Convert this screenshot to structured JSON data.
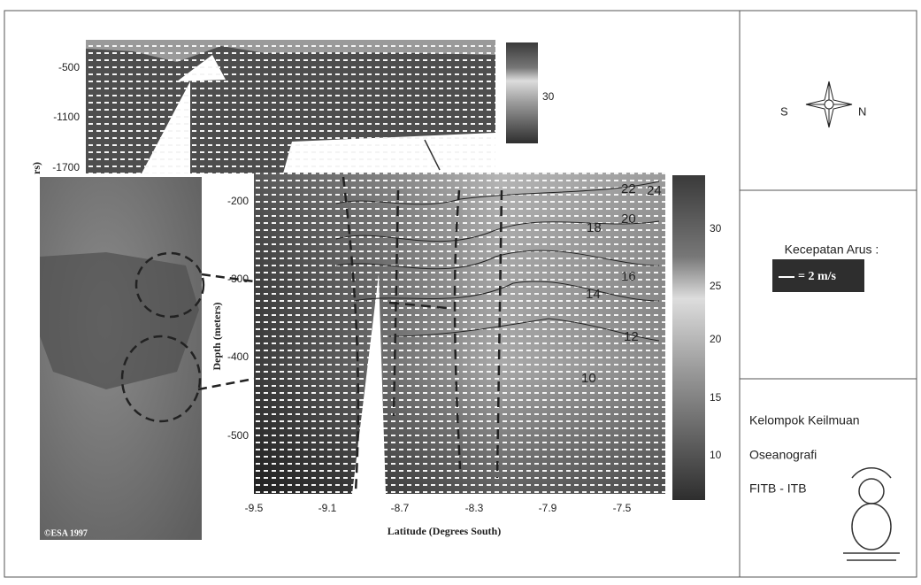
{
  "top_section": {
    "y_axis_label": "rs)",
    "y_ticks": [
      "-500",
      "-1100",
      "-1700"
    ],
    "colorbar_ticks": [
      "30"
    ]
  },
  "satellite_image": {
    "caption": "©ESA 1997"
  },
  "main_section": {
    "y_axis_label": "Depth (meters)",
    "y_ticks": [
      "-200",
      "-300",
      "-400",
      "-500"
    ],
    "x_axis_label": "Latitude (Degrees South)",
    "x_ticks": [
      "-9.5",
      "-9.1",
      "-8.7",
      "-8.3",
      "-7.9",
      "-7.5"
    ],
    "colorbar_ticks": [
      "30",
      "25",
      "20",
      "15",
      "10"
    ],
    "contour_labels": [
      "22",
      "24",
      "20",
      "18",
      "16",
      "14",
      "12",
      "10"
    ]
  },
  "sidebar": {
    "compass_south": "S",
    "compass_north": "N",
    "legend_title": "Kecepatan Arus :",
    "legend_scale": "= 2 m/s",
    "group_lines": [
      "Kelompok Keilmuan",
      "Oseanografi",
      "FITB - ITB"
    ]
  }
}
